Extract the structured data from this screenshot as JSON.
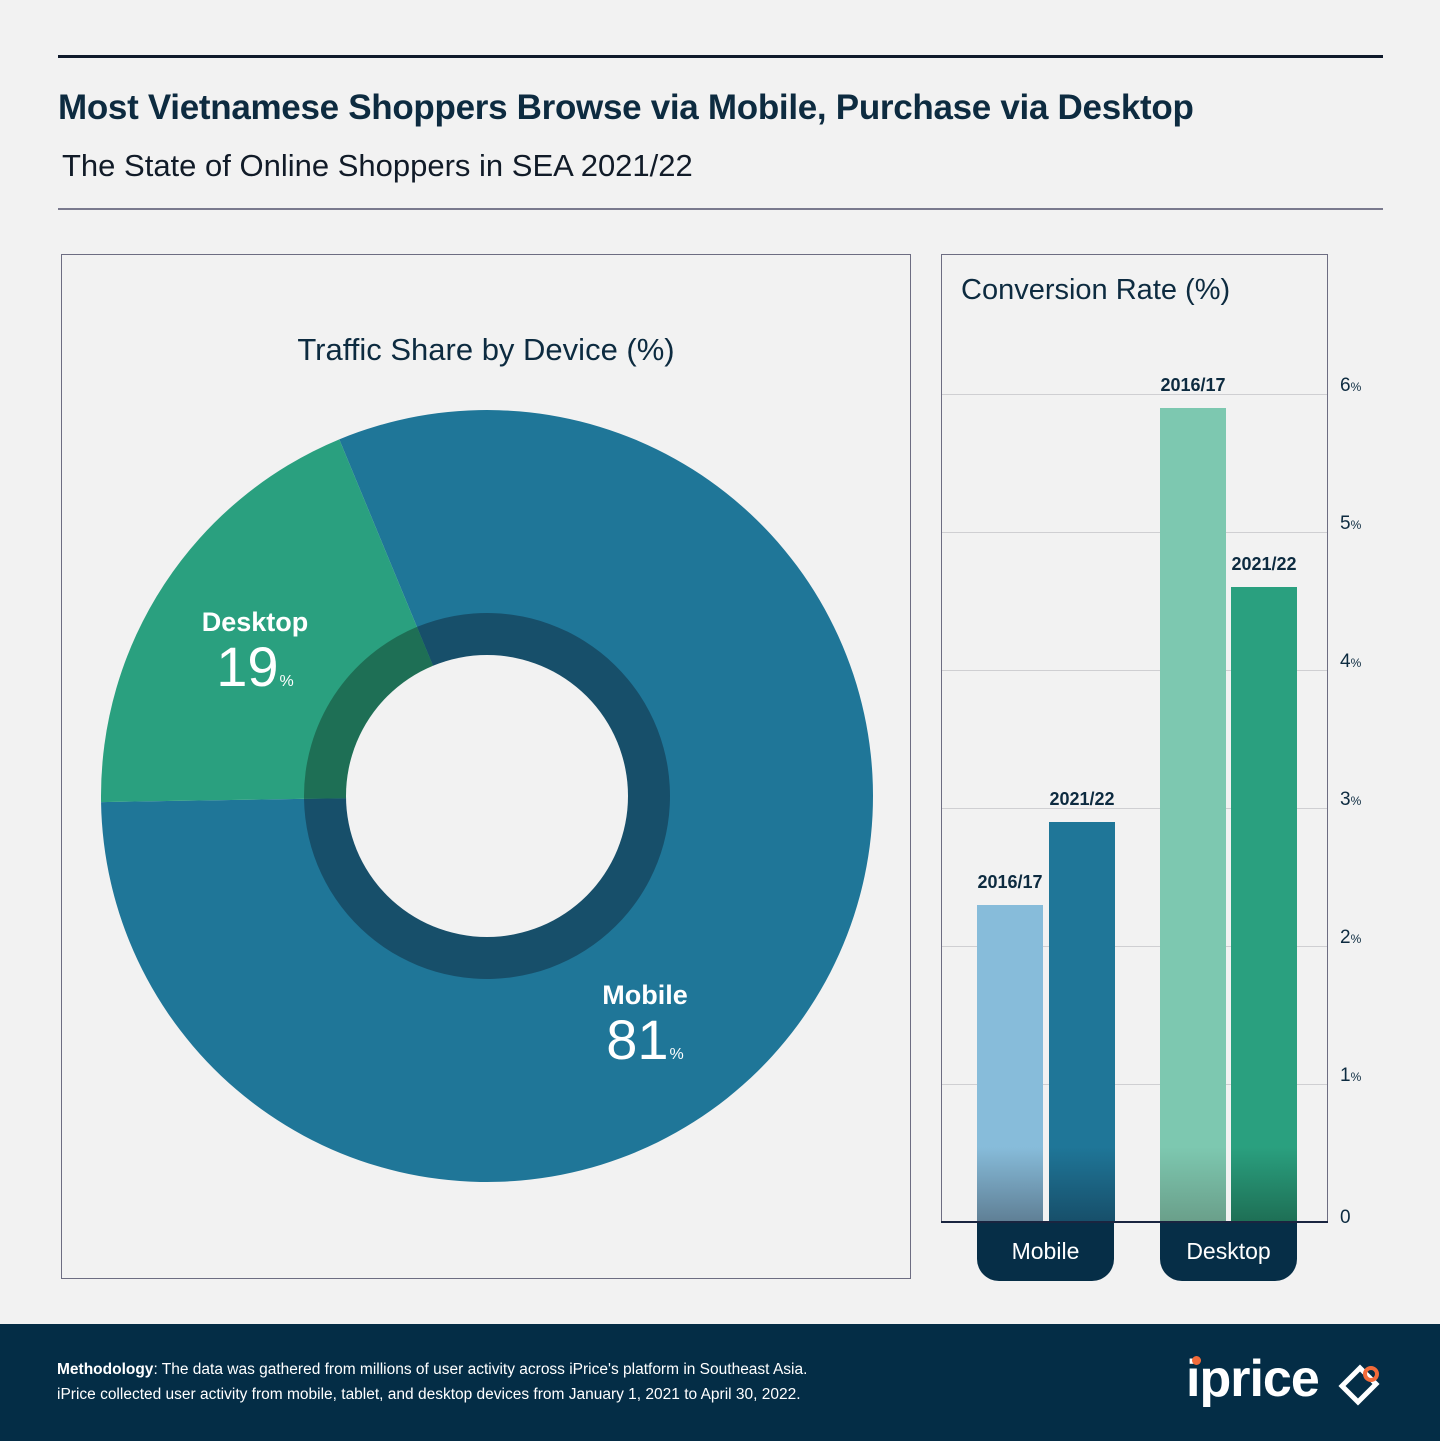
{
  "header": {
    "title": "Most Vietnamese Shoppers Browse via Mobile, Purchase via Desktop",
    "subtitle": "The State of Online Shoppers in SEA 2021/22"
  },
  "colors": {
    "background": "#f2f2f2",
    "mobile": "#1f7698",
    "mobile_inner": "#174f6a",
    "desktop": "#2aa07f",
    "desktop_inner": "#1e6f55",
    "mobile_2016": "#87bcda",
    "mobile_2021": "#1f7698",
    "desktop_2016": "#7dc8b0",
    "desktop_2021": "#2aa07f",
    "navy": "#042d46",
    "logo_accent": "#f26b3a"
  },
  "chart_data": [
    {
      "type": "pie",
      "title": "Traffic Share by Device (%)",
      "donut": true,
      "slices": [
        {
          "label": "Mobile",
          "value": 81,
          "display": "81",
          "unit": "%"
        },
        {
          "label": "Desktop",
          "value": 19,
          "display": "19",
          "unit": "%"
        }
      ]
    },
    {
      "type": "bar",
      "title": "Conversion Rate (%)",
      "categories": [
        "Mobile",
        "Desktop"
      ],
      "series": [
        {
          "name": "2016/17",
          "values": [
            2.3,
            5.9
          ]
        },
        {
          "name": "2021/22",
          "values": [
            2.9,
            4.6
          ]
        }
      ],
      "ylim": [
        0,
        6
      ],
      "yticks": [
        {
          "value": 0,
          "label": "0",
          "unit": ""
        },
        {
          "value": 1,
          "label": "1",
          "unit": "%"
        },
        {
          "value": 2,
          "label": "2",
          "unit": "%"
        },
        {
          "value": 3,
          "label": "3",
          "unit": "%"
        },
        {
          "value": 4,
          "label": "4",
          "unit": "%"
        },
        {
          "value": 5,
          "label": "5",
          "unit": "%"
        },
        {
          "value": 6,
          "label": "6",
          "unit": "%"
        }
      ],
      "yaxis_position": "right",
      "grid": true
    }
  ],
  "footer": {
    "methodology_label": "Methodology",
    "methodology_line1": ": The data was gathered from millions of user activity across iPrice's platform in Southeast Asia.",
    "methodology_line2": "iPrice collected user activity from mobile, tablet, and desktop devices from January 1, 2021 to April 30, 2022.",
    "logo_text": "iprice"
  }
}
